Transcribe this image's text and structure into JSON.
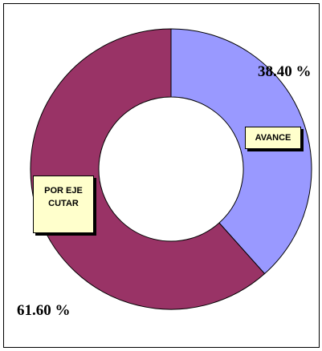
{
  "chart_data": {
    "type": "donut",
    "categories": [
      "AVANCE",
      "POR EJECUTAR"
    ],
    "values": [
      38.4,
      61.6
    ],
    "value_labels": [
      "38.40 %",
      "61.60 %"
    ],
    "colors": [
      "#9999ff",
      "#993366"
    ]
  }
}
